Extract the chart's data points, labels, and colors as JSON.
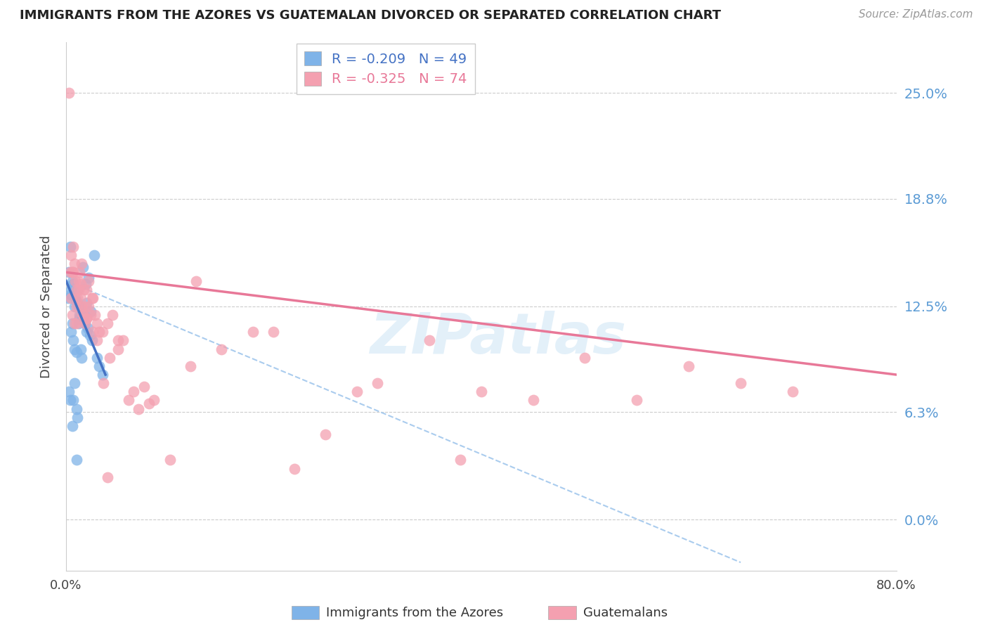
{
  "title": "IMMIGRANTS FROM THE AZORES VS GUATEMALAN DIVORCED OR SEPARATED CORRELATION CHART",
  "source": "Source: ZipAtlas.com",
  "ylabel": "Divorced or Separated",
  "ytick_values": [
    0.0,
    6.3,
    12.5,
    18.8,
    25.0
  ],
  "xlim": [
    0.0,
    80.0
  ],
  "ylim": [
    -3.0,
    28.0
  ],
  "color_blue": "#7fb3e8",
  "color_pink": "#f4a0b0",
  "color_blue_line": "#4472c4",
  "color_pink_line": "#e87898",
  "color_dashed": "#aaccee",
  "blue_points_x": [
    0.2,
    0.3,
    0.4,
    0.5,
    0.5,
    0.6,
    0.6,
    0.7,
    0.7,
    0.8,
    0.8,
    0.9,
    1.0,
    1.0,
    1.0,
    1.1,
    1.1,
    1.2,
    1.2,
    1.3,
    1.3,
    1.4,
    1.4,
    1.5,
    1.5,
    1.6,
    1.7,
    1.8,
    1.9,
    2.0,
    2.1,
    2.2,
    2.3,
    2.5,
    2.7,
    3.0,
    3.2,
    3.5,
    0.4,
    0.6,
    0.8,
    1.0,
    1.3,
    1.6,
    2.0,
    2.4,
    0.3,
    0.5,
    0.7
  ],
  "blue_points_y": [
    13.0,
    14.5,
    16.0,
    13.5,
    11.0,
    14.0,
    11.5,
    13.8,
    10.5,
    12.5,
    10.0,
    13.0,
    12.8,
    9.8,
    6.5,
    13.5,
    6.0,
    12.5,
    11.5,
    12.0,
    11.8,
    12.0,
    10.0,
    12.3,
    9.5,
    11.8,
    12.0,
    11.5,
    13.8,
    11.0,
    11.2,
    14.2,
    10.8,
    10.5,
    15.5,
    9.5,
    9.0,
    8.5,
    7.0,
    5.5,
    8.0,
    3.5,
    11.8,
    14.8,
    12.7,
    12.2,
    7.5,
    13.2,
    7.0
  ],
  "pink_points_x": [
    0.3,
    0.4,
    0.5,
    0.5,
    0.6,
    0.7,
    0.7,
    0.8,
    0.9,
    1.0,
    1.0,
    1.1,
    1.2,
    1.2,
    1.3,
    1.4,
    1.4,
    1.5,
    1.5,
    1.6,
    1.7,
    1.8,
    1.9,
    2.0,
    2.0,
    2.2,
    2.2,
    2.4,
    2.5,
    2.6,
    2.8,
    3.0,
    3.2,
    3.5,
    3.6,
    4.0,
    4.2,
    4.5,
    5.0,
    5.0,
    5.5,
    6.0,
    6.5,
    7.0,
    7.5,
    8.0,
    8.5,
    10.0,
    12.0,
    12.5,
    15.0,
    18.0,
    20.0,
    22.0,
    25.0,
    28.0,
    30.0,
    35.0,
    38.0,
    40.0,
    45.0,
    50.0,
    55.0,
    60.0,
    65.0,
    70.0,
    0.6,
    0.8,
    1.0,
    1.6,
    2.0,
    2.6,
    3.0,
    4.0
  ],
  "pink_points_y": [
    25.0,
    14.5,
    15.5,
    13.0,
    14.5,
    16.0,
    14.5,
    15.0,
    14.0,
    13.5,
    12.5,
    13.0,
    14.0,
    13.5,
    14.5,
    13.8,
    13.0,
    15.0,
    12.5,
    12.0,
    13.5,
    11.5,
    12.5,
    13.5,
    11.8,
    14.0,
    12.5,
    12.0,
    13.0,
    13.0,
    12.0,
    11.5,
    11.0,
    11.0,
    8.0,
    11.5,
    9.5,
    12.0,
    10.0,
    10.5,
    10.5,
    7.0,
    7.5,
    6.5,
    7.8,
    6.8,
    7.0,
    3.5,
    9.0,
    14.0,
    10.0,
    11.0,
    11.0,
    3.0,
    5.0,
    7.5,
    8.0,
    10.5,
    3.5,
    7.5,
    7.0,
    9.5,
    7.0,
    9.0,
    8.0,
    7.5,
    12.0,
    11.5,
    11.5,
    12.0,
    11.8,
    11.0,
    10.5,
    2.5
  ],
  "blue_line_x0": 0.0,
  "blue_line_x1": 3.8,
  "blue_line_y0": 14.0,
  "blue_line_y1": 8.5,
  "pink_line_x0": 0.0,
  "pink_line_x1": 80.0,
  "pink_line_y0": 14.5,
  "pink_line_y1": 8.5,
  "dashed_line_x0": 0.0,
  "dashed_line_x1": 65.0,
  "dashed_line_y0": 14.0,
  "dashed_line_y1": -2.5
}
